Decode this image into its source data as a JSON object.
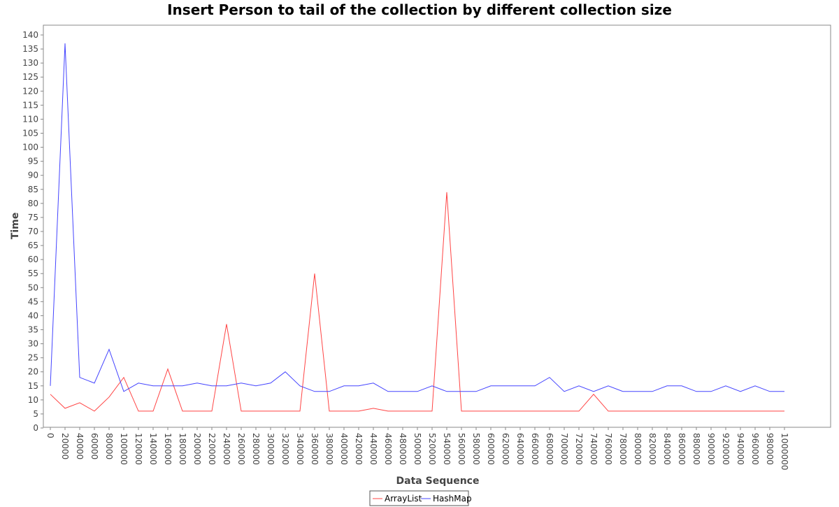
{
  "chart_data": {
    "type": "line",
    "title": "Insert Person to tail of the collection by different collection size",
    "xlabel": "Data Sequence",
    "ylabel": "Time",
    "ylim": [
      0,
      140
    ],
    "y_ticks": [
      "0",
      "5",
      "10",
      "15",
      "20",
      "25",
      "30",
      "35",
      "40",
      "45",
      "50",
      "55",
      "60",
      "65",
      "70",
      "75",
      "80",
      "85",
      "90",
      "95",
      "100",
      "105",
      "110",
      "115",
      "120",
      "125",
      "130",
      "135",
      "140"
    ],
    "x": [
      "0",
      "20000",
      "40000",
      "60000",
      "80000",
      "100000",
      "120000",
      "140000",
      "160000",
      "180000",
      "200000",
      "220000",
      "240000",
      "260000",
      "280000",
      "300000",
      "320000",
      "340000",
      "360000",
      "380000",
      "400000",
      "420000",
      "440000",
      "460000",
      "480000",
      "500000",
      "520000",
      "540000",
      "560000",
      "580000",
      "600000",
      "620000",
      "640000",
      "660000",
      "680000",
      "700000",
      "720000",
      "740000",
      "760000",
      "780000",
      "800000",
      "820000",
      "840000",
      "860000",
      "880000",
      "900000",
      "920000",
      "940000",
      "960000",
      "980000",
      "1000000"
    ],
    "grid": false,
    "legend_position": "bottom",
    "series": [
      {
        "name": "ArrayList",
        "color": "#ff4444",
        "values": [
          12,
          7,
          9,
          6,
          11,
          18,
          6,
          6,
          21,
          6,
          6,
          6,
          37,
          6,
          6,
          6,
          6,
          6,
          55,
          6,
          6,
          6,
          7,
          6,
          6,
          6,
          6,
          84,
          6,
          6,
          6,
          6,
          6,
          6,
          6,
          6,
          6,
          12,
          6,
          6,
          6,
          6,
          6,
          6,
          6,
          6,
          6,
          6,
          6,
          6,
          6
        ]
      },
      {
        "name": "HashMap",
        "color": "#4444ff",
        "values": [
          15,
          137,
          18,
          16,
          28,
          13,
          16,
          15,
          15,
          15,
          16,
          15,
          15,
          16,
          15,
          16,
          20,
          15,
          13,
          13,
          15,
          15,
          16,
          13,
          13,
          13,
          15,
          13,
          13,
          13,
          15,
          15,
          15,
          15,
          18,
          13,
          15,
          13,
          15,
          13,
          13,
          13,
          15,
          15,
          13,
          13,
          15,
          13,
          15,
          13,
          13
        ]
      }
    ]
  }
}
